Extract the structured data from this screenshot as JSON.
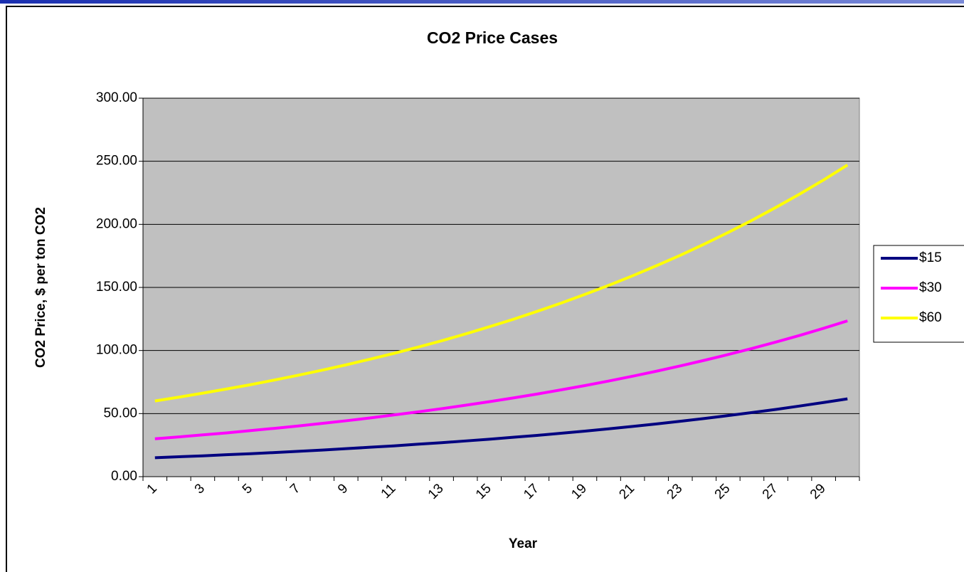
{
  "chart_data": {
    "type": "line",
    "title": "CO2 Price Cases",
    "x_label": "Year",
    "y_label": "CO2 Price, $ per ton CO2",
    "categories": [
      1,
      null,
      3,
      null,
      5,
      null,
      7,
      null,
      9,
      null,
      11,
      null,
      13,
      null,
      15,
      null,
      17,
      null,
      19,
      null,
      21,
      null,
      23,
      null,
      25,
      null,
      27,
      null,
      29,
      null
    ],
    "series": [
      {
        "name": "$15",
        "color": "#000080",
        "values": [
          15.0,
          15.8,
          16.5,
          17.4,
          18.2,
          19.1,
          20.1,
          21.1,
          22.2,
          23.3,
          24.4,
          25.7,
          26.9,
          28.3,
          29.7,
          31.2,
          32.7,
          34.4,
          36.1,
          37.9,
          39.8,
          41.8,
          43.9,
          46.1,
          48.4,
          50.8,
          53.3,
          56.0,
          58.8,
          61.7
        ]
      },
      {
        "name": "$30",
        "color": "#ff00ff",
        "values": [
          30.0,
          31.5,
          33.1,
          34.7,
          36.5,
          38.3,
          40.2,
          42.2,
          44.3,
          46.5,
          48.9,
          51.3,
          53.9,
          56.6,
          59.4,
          62.4,
          65.5,
          68.8,
          72.2,
          75.8,
          79.6,
          83.6,
          87.8,
          92.2,
          96.8,
          101.6,
          106.7,
          112.0,
          117.6,
          123.5
        ]
      },
      {
        "name": "$60",
        "color": "#ffff00",
        "values": [
          60.0,
          63.0,
          66.2,
          69.5,
          72.9,
          76.6,
          80.4,
          84.4,
          88.6,
          93.1,
          97.7,
          102.6,
          107.7,
          113.1,
          118.8,
          124.7,
          131.0,
          137.5,
          144.4,
          151.6,
          159.2,
          167.2,
          175.5,
          184.3,
          193.5,
          203.2,
          213.4,
          224.0,
          235.2,
          247.0
        ]
      }
    ],
    "ylim": [
      0,
      300
    ],
    "yticks": [
      {
        "value": 0,
        "label": "0.00"
      },
      {
        "value": 50,
        "label": "50.00"
      },
      {
        "value": 100,
        "label": "100.00"
      },
      {
        "value": 150,
        "label": "150.00"
      },
      {
        "value": 200,
        "label": "200.00"
      },
      {
        "value": 250,
        "label": "250.00"
      },
      {
        "value": 300,
        "label": "300.00"
      }
    ],
    "grid": true,
    "legend": "right",
    "plot_background": "#c0c0c0"
  }
}
